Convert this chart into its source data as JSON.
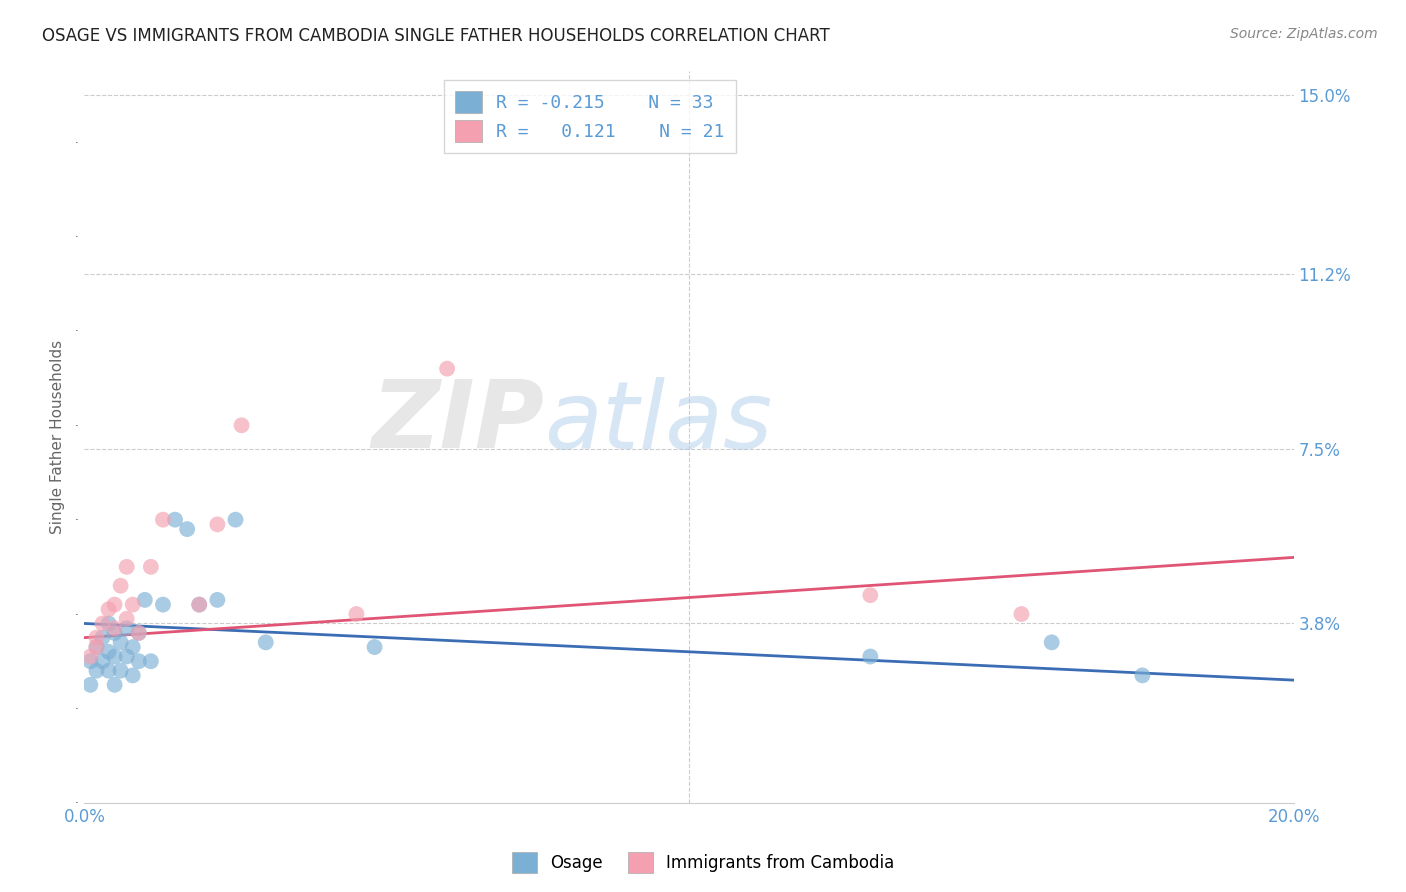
{
  "title": "OSAGE VS IMMIGRANTS FROM CAMBODIA SINGLE FATHER HOUSEHOLDS CORRELATION CHART",
  "source": "Source: ZipAtlas.com",
  "ylabel": "Single Father Households",
  "xlim": [
    0.0,
    0.2
  ],
  "ylim": [
    0.0,
    0.155
  ],
  "xticks": [
    0.0,
    0.04,
    0.08,
    0.12,
    0.16,
    0.2
  ],
  "xticklabels": [
    "0.0%",
    "",
    "",
    "",
    "",
    "20.0%"
  ],
  "ytick_positions": [
    0.038,
    0.075,
    0.112,
    0.15
  ],
  "ytick_labels": [
    "3.8%",
    "7.5%",
    "11.2%",
    "15.0%"
  ],
  "color_blue": "#7BAFD4",
  "color_pink": "#F4A0B0",
  "color_line_blue": "#3B6DB5",
  "color_line_pink": "#E05575",
  "color_ytick": "#5B9BD5",
  "color_xtick": "#5B9BD5",
  "watermark_zip": "ZIP",
  "watermark_atlas": "atlas",
  "osage_x": [
    0.001,
    0.001,
    0.002,
    0.002,
    0.003,
    0.003,
    0.004,
    0.004,
    0.004,
    0.005,
    0.005,
    0.005,
    0.006,
    0.006,
    0.007,
    0.007,
    0.008,
    0.008,
    0.009,
    0.009,
    0.01,
    0.011,
    0.013,
    0.015,
    0.017,
    0.019,
    0.022,
    0.025,
    0.03,
    0.048,
    0.13,
    0.16,
    0.175
  ],
  "osage_y": [
    0.03,
    0.025,
    0.033,
    0.028,
    0.035,
    0.03,
    0.038,
    0.032,
    0.028,
    0.036,
    0.031,
    0.025,
    0.034,
    0.028,
    0.037,
    0.031,
    0.033,
    0.027,
    0.036,
    0.03,
    0.043,
    0.03,
    0.042,
    0.06,
    0.058,
    0.042,
    0.043,
    0.06,
    0.034,
    0.033,
    0.031,
    0.034,
    0.027
  ],
  "cambodia_x": [
    0.001,
    0.002,
    0.002,
    0.003,
    0.004,
    0.005,
    0.005,
    0.006,
    0.007,
    0.007,
    0.008,
    0.009,
    0.011,
    0.013,
    0.019,
    0.022,
    0.026,
    0.045,
    0.06,
    0.13,
    0.155
  ],
  "cambodia_y": [
    0.031,
    0.035,
    0.033,
    0.038,
    0.041,
    0.042,
    0.037,
    0.046,
    0.039,
    0.05,
    0.042,
    0.036,
    0.05,
    0.06,
    0.042,
    0.059,
    0.08,
    0.04,
    0.092,
    0.044,
    0.04
  ],
  "blue_trend_x0": 0.0,
  "blue_trend_y0": 0.038,
  "blue_trend_x1": 0.2,
  "blue_trend_y1": 0.026,
  "pink_trend_x0": 0.0,
  "pink_trend_y0": 0.035,
  "pink_trend_x1": 0.2,
  "pink_trend_y1": 0.052
}
